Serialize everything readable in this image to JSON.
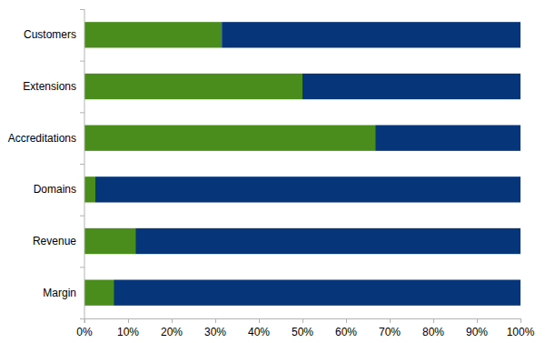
{
  "chart_data": {
    "type": "bar",
    "orientation": "horizontal",
    "stacked": true,
    "grid": false,
    "categories": [
      "Customers",
      "Extensions",
      "Accreditations",
      "Domains",
      "Revenue",
      "Margin"
    ],
    "series": [
      {
        "color": "#4b8d1d",
        "values": [
          31.5,
          50,
          66.7,
          2.5,
          11.7,
          6.7
        ]
      },
      {
        "color": "#06357a",
        "values": [
          68.5,
          50,
          33.3,
          97.5,
          88.3,
          93.3
        ]
      }
    ],
    "xlim": [
      0,
      100
    ],
    "xticks": [
      {
        "value": 0,
        "label": "0%"
      },
      {
        "value": 10,
        "label": "10%"
      },
      {
        "value": 20,
        "label": "20%"
      },
      {
        "value": 30,
        "label": "30%"
      },
      {
        "value": 40,
        "label": "40%"
      },
      {
        "value": 50,
        "label": "50%"
      },
      {
        "value": 60,
        "label": "60%"
      },
      {
        "value": 70,
        "label": "70%"
      },
      {
        "value": 80,
        "label": "80%"
      },
      {
        "value": 90,
        "label": "90%"
      },
      {
        "value": 100,
        "label": "100%"
      }
    ]
  }
}
